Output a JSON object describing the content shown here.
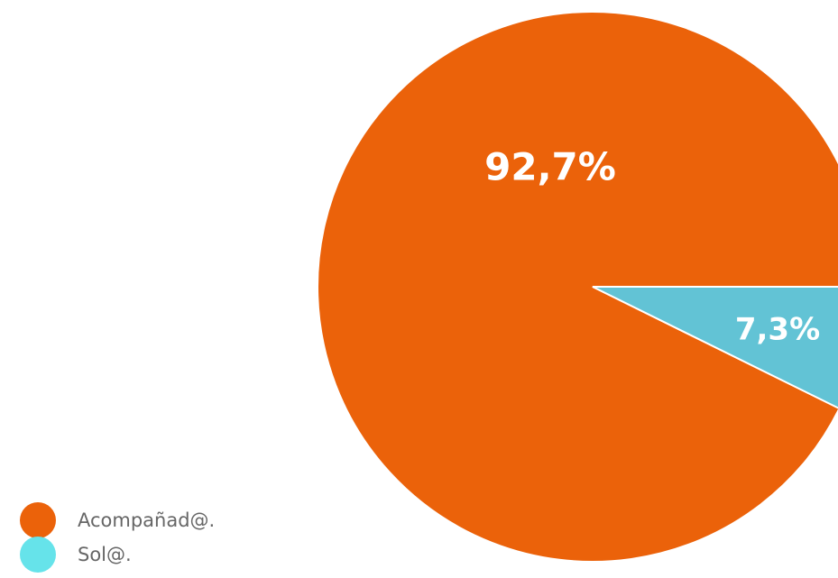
{
  "chart_data": {
    "type": "pie",
    "title": "",
    "slices": [
      {
        "name": "Acompañad@.",
        "value": 92.7,
        "label": "92,7%",
        "color": "#eb620a"
      },
      {
        "name": "Sol@.",
        "value": 7.3,
        "label": "7,3%",
        "color": "#62c3d5"
      }
    ],
    "legend": {
      "placement": "bottom-left",
      "items": [
        {
          "label": "Acompañad@.",
          "color": "#eb620a"
        },
        {
          "label": "Sol@.",
          "color": "#66e3ea"
        }
      ]
    }
  }
}
